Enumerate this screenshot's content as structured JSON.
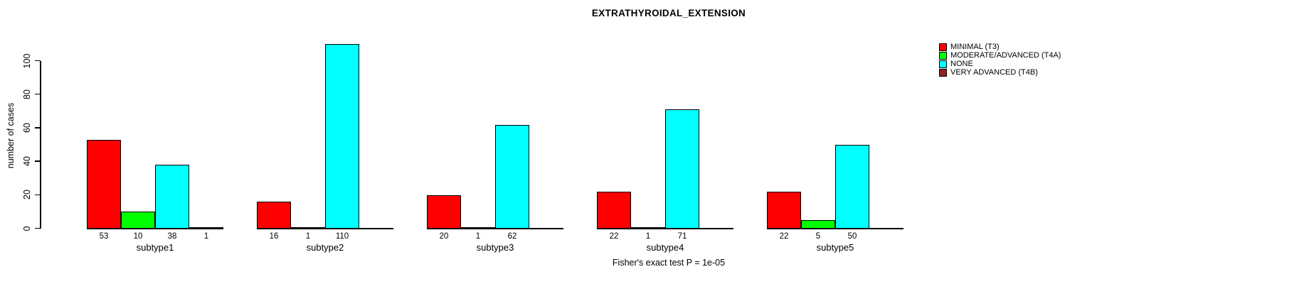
{
  "title": "EXTRATHYROIDAL_EXTENSION",
  "footnote": "Fisher's exact test P = 1e-05",
  "y_axis": {
    "label": "number of cases",
    "ticks": [
      0,
      20,
      40,
      60,
      80,
      100
    ]
  },
  "legend": {
    "position": "top-right",
    "items": [
      {
        "label": "MINIMAL (T3)",
        "color": "#FF0000"
      },
      {
        "label": "MODERATE/ADVANCED (T4A)",
        "color": "#00FF00"
      },
      {
        "label": "NONE",
        "color": "#00FFFF"
      },
      {
        "label": "VERY ADVANCED (T4B)",
        "color": "#8B2525"
      }
    ]
  },
  "chart_data": {
    "type": "bar",
    "title": "EXTRATHYROIDAL_EXTENSION",
    "xlabel": "",
    "ylabel": "number of cases",
    "ylim": [
      0,
      110
    ],
    "grid": false,
    "legend_position": "top-right",
    "categories": [
      "subtype1",
      "subtype2",
      "subtype3",
      "subtype4",
      "subtype5"
    ],
    "series": [
      {
        "name": "MINIMAL (T3)",
        "color": "#FF0000",
        "values": [
          53,
          16,
          20,
          22,
          22
        ]
      },
      {
        "name": "MODERATE/ADVANCED (T4A)",
        "color": "#00FF00",
        "values": [
          10,
          1,
          1,
          1,
          5
        ]
      },
      {
        "name": "NONE",
        "color": "#00FFFF",
        "values": [
          38,
          110,
          62,
          71,
          50
        ]
      },
      {
        "name": "VERY ADVANCED (T4B)",
        "color": "#8B2525",
        "values": [
          1,
          0,
          0,
          0,
          0
        ]
      }
    ],
    "bar_count_labels": "value shown under each bar when value > 0",
    "annotation": "Fisher's exact test P = 1e-05"
  }
}
